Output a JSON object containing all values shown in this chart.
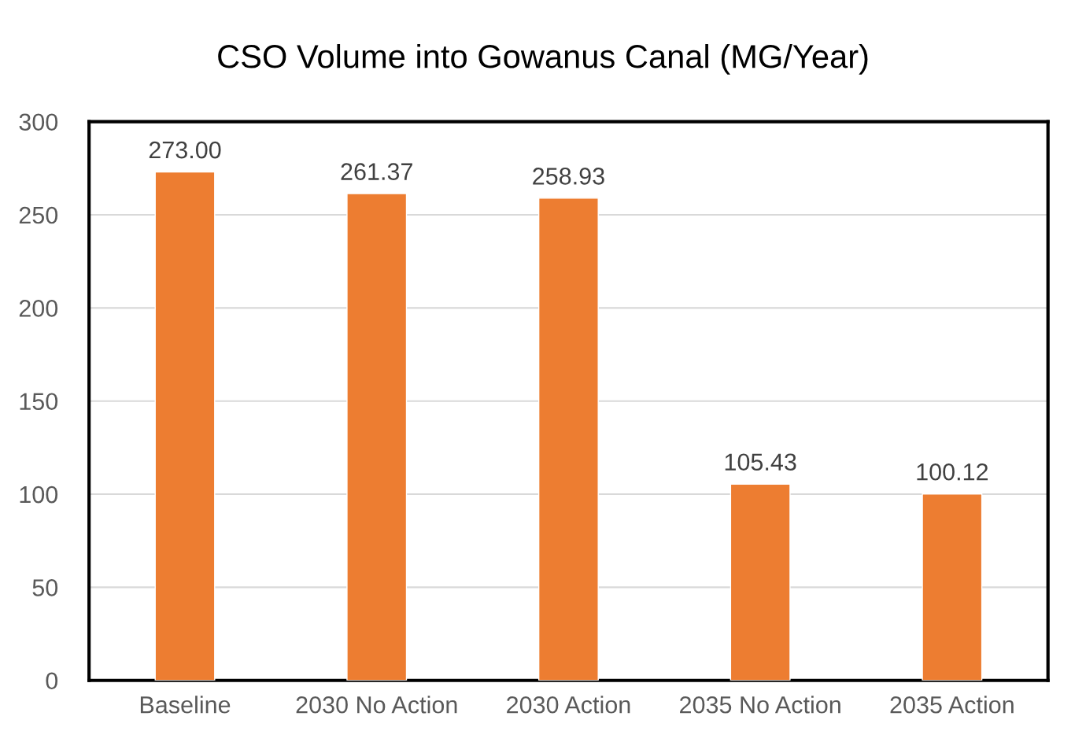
{
  "chart_data": {
    "type": "bar",
    "title": "CSO Volume into Gowanus Canal (MG/Year)",
    "categories": [
      "Baseline",
      "2030 No Action",
      "2030 Action",
      "2035 No Action",
      "2035 Action"
    ],
    "values": [
      273.0,
      261.37,
      258.93,
      105.43,
      100.12
    ],
    "value_labels": [
      "273.00",
      "261.37",
      "258.93",
      "105.43",
      "100.12"
    ],
    "color": "#ed7d31",
    "ylim": [
      0,
      300
    ],
    "yticks": [
      0,
      50,
      100,
      150,
      200,
      250,
      300
    ],
    "grid": "y"
  }
}
